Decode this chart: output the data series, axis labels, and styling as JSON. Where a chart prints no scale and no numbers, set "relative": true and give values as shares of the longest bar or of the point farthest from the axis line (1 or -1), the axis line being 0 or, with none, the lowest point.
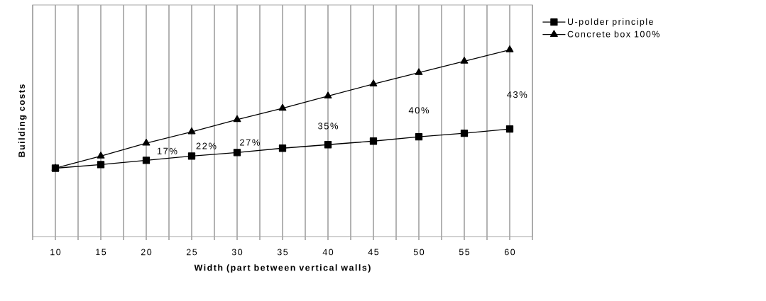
{
  "chart_data": {
    "type": "line",
    "relative": true,
    "xlabel": "Width (part between vertical walls)",
    "ylabel": "Building costs",
    "x": [
      10,
      15,
      20,
      25,
      30,
      35,
      40,
      45,
      50,
      55,
      60
    ],
    "series": [
      {
        "name": "U-polder principle",
        "color": "#000000",
        "marker": "square",
        "values": [
          0.366,
          0.385,
          0.408,
          0.431,
          0.45,
          0.473,
          0.492,
          0.511,
          0.534,
          0.553,
          0.576
        ]
      },
      {
        "name": "Concrete box 100%",
        "color": "#000000",
        "marker": "triangle",
        "values": [
          0.366,
          0.431,
          0.5,
          0.561,
          0.626,
          0.687,
          0.752,
          0.817,
          0.878,
          0.939,
          1
        ]
      }
    ],
    "xlim": [
      7.5,
      62.5
    ],
    "xticks": [
      {
        "value": 7.5,
        "label": null
      },
      10,
      {
        "value": 12.5,
        "label": null
      },
      15,
      {
        "value": 17.5,
        "label": null
      },
      20,
      {
        "value": 22.5,
        "label": null
      },
      25,
      {
        "value": 27.5,
        "label": null
      },
      30,
      {
        "value": 32.5,
        "label": null
      },
      35,
      {
        "value": 37.5,
        "label": null
      },
      40,
      {
        "value": 42.5,
        "label": null
      },
      45,
      {
        "value": 47.5,
        "label": null
      },
      50,
      {
        "value": 52.5,
        "label": null
      },
      55,
      {
        "value": 57.5,
        "label": null
      },
      60,
      {
        "value": 62.5,
        "label": null
      }
    ],
    "annotations": [
      "17%",
      "22%",
      "27%",
      "35%",
      "40%",
      "43%"
    ],
    "grid": "x",
    "legend": "top right",
    "line_style": "solid",
    "tick_labels": "x"
  }
}
